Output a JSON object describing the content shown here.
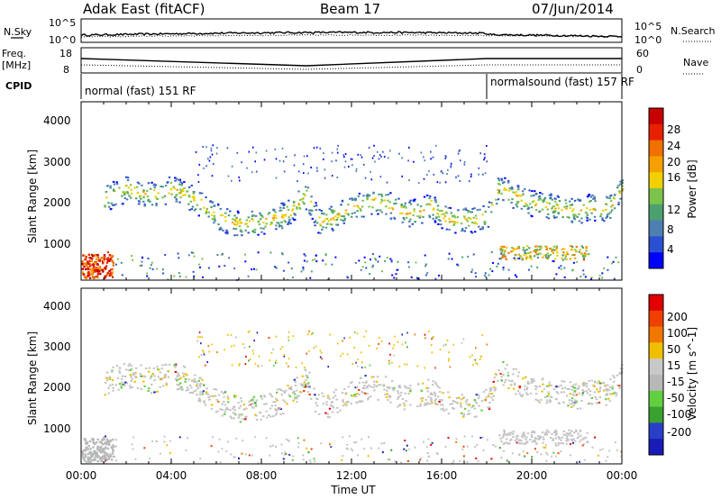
{
  "header": {
    "site": "Adak East (fitACF)",
    "beam": "Beam 17",
    "date": "07/Jun/2014"
  },
  "left_labels": {
    "nsky": "N.Sky",
    "freq_line1": "Freq.",
    "freq_line2": "[MHz]",
    "cpid": "CPID"
  },
  "right_labels": {
    "nsearch": "N.Search",
    "nave": "Nave"
  },
  "noise_panel": {
    "left_ticks": [
      "10^5",
      "10^0"
    ],
    "right_ticks": [
      "10^5",
      "10^0"
    ]
  },
  "freq_panel": {
    "left_ticks": [
      "18",
      "8"
    ],
    "right_ticks": [
      "60",
      "0"
    ]
  },
  "cpid_panel": {
    "modes": [
      {
        "label": "normal (fast) 151 RF",
        "start_hour": 0,
        "end_hour": 18
      },
      {
        "label": "normalsound (fast) 157 RF",
        "start_hour": 18,
        "end_hour": 24
      }
    ]
  },
  "colors": {
    "power_scale": [
      "#0000ff",
      "#2a4fd0",
      "#4d7fb0",
      "#4ca070",
      "#7bc34a",
      "#f0d000",
      "#f5a000",
      "#f07000",
      "#e82000",
      "#c80000"
    ],
    "velocity_scale": [
      "#1a1ab8",
      "#2a3fc8",
      "#3aa030",
      "#60d040",
      "#b8b8b8",
      "#c8c8c8",
      "#f0c000",
      "#f07800",
      "#f04000",
      "#e00000"
    ]
  },
  "chart_data": [
    {
      "type": "heatmap",
      "name": "power",
      "ylabel": "Slant Range [km]",
      "xlabel": "Time UT",
      "x_ticks": [
        "00:00",
        "04:00",
        "08:00",
        "12:00",
        "16:00",
        "20:00",
        "00:00"
      ],
      "y_ticks": [
        "1000",
        "2000",
        "3000",
        "4000"
      ],
      "ylim": [
        180,
        4600
      ],
      "colorbar_label": "Power [dB]",
      "colorbar_ticks": [
        "28",
        "24",
        "20",
        "16",
        "12",
        "8",
        "4"
      ],
      "main_band": [
        [
          1.0,
          2180
        ],
        [
          1.5,
          2350
        ],
        [
          2.0,
          2450
        ],
        [
          2.5,
          2380
        ],
        [
          3.0,
          2300
        ],
        [
          3.5,
          2350
        ],
        [
          4.0,
          2450
        ],
        [
          4.5,
          2350
        ],
        [
          5.0,
          2180
        ],
        [
          5.5,
          2000
        ],
        [
          6.0,
          1800
        ],
        [
          6.5,
          1650
        ],
        [
          7.0,
          1580
        ],
        [
          7.5,
          1600
        ],
        [
          8.0,
          1650
        ],
        [
          8.5,
          1720
        ],
        [
          9.0,
          1800
        ],
        [
          9.5,
          2050
        ],
        [
          10.0,
          2300
        ],
        [
          10.5,
          1650
        ],
        [
          11.0,
          1700
        ],
        [
          11.5,
          1850
        ],
        [
          12.0,
          2000
        ],
        [
          12.5,
          2100
        ],
        [
          13.0,
          2150
        ],
        [
          13.5,
          2100
        ],
        [
          14.0,
          1950
        ],
        [
          14.5,
          1850
        ],
        [
          15.0,
          1900
        ],
        [
          15.5,
          2050
        ],
        [
          16.0,
          1800
        ],
        [
          16.5,
          1650
        ],
        [
          17.0,
          1700
        ],
        [
          17.5,
          1700
        ],
        [
          18.0,
          1750
        ],
        [
          18.5,
          2500
        ],
        [
          19.0,
          2350
        ],
        [
          19.5,
          2200
        ],
        [
          20.0,
          2100
        ],
        [
          20.5,
          2050
        ],
        [
          21.0,
          2000
        ],
        [
          21.5,
          1950
        ],
        [
          22.0,
          1900
        ],
        [
          22.5,
          2000
        ],
        [
          23.0,
          1950
        ],
        [
          23.5,
          2050
        ],
        [
          24.0,
          2500
        ]
      ]
    },
    {
      "type": "heatmap",
      "name": "velocity",
      "ylabel": "Slant Range [km]",
      "xlabel": "Time UT",
      "x_ticks": [
        "00:00",
        "04:00",
        "08:00",
        "12:00",
        "16:00",
        "20:00",
        "00:00"
      ],
      "y_ticks": [
        "1000",
        "2000",
        "3000",
        "4000"
      ],
      "ylim": [
        180,
        4600
      ],
      "colorbar_label": "Velocity [m s^-1]",
      "colorbar_ticks": [
        "200",
        "100",
        "50",
        "15",
        "-15",
        "-50",
        "-100",
        "-200"
      ]
    }
  ],
  "xaxis": {
    "label": "Time UT",
    "ticks": [
      "00:00",
      "04:00",
      "08:00",
      "12:00",
      "16:00",
      "20:00",
      "00:00"
    ]
  }
}
